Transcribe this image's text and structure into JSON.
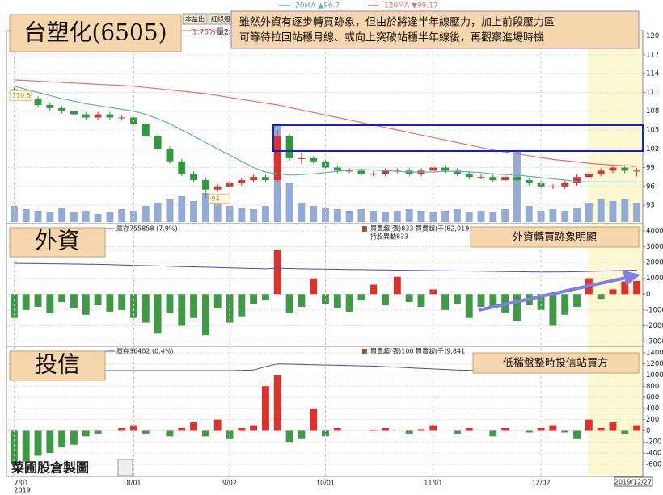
{
  "header": {
    "watermark": "菜圃股倉製圖",
    "info_tags": [
      "本益比",
      "紅綠燈"
    ],
    "change": "1.75%",
    "volume_note": "量2,"
  },
  "chart_data": [
    {
      "type": "candlestick",
      "title": "台塑化(6505)",
      "annotation": [
        "雖然外資有逐步轉買跡象，但由於將逢半年線壓力，加上前段壓力區",
        "可等待拉回站穩月線、或向上突破站穩半年線後，再觀察進場時機"
      ],
      "open": [
        111.5,
        111,
        110,
        109,
        108.5,
        108,
        107.5,
        107,
        107.5,
        107,
        107,
        106,
        104,
        102,
        100,
        98,
        97,
        95.5,
        96,
        96.5,
        97,
        97.5,
        97,
        104,
        100.5,
        100.5,
        100,
        99,
        98.5,
        98.5,
        98,
        98,
        98.5,
        98.5,
        98,
        98.5,
        99,
        98.5,
        98,
        97.5,
        97.5,
        97,
        97.5,
        97,
        96.5,
        96,
        96,
        96.5,
        97.5,
        98,
        98.5,
        99,
        98.5
      ],
      "high": [
        111.9,
        111.4,
        110.4,
        109.4,
        108.9,
        108.4,
        107.9,
        107.9,
        107.9,
        107.4,
        107.4,
        106.4,
        104.4,
        102.4,
        100.4,
        98.4,
        97.4,
        96.4,
        96.9,
        97.4,
        97.9,
        97.9,
        105,
        104.4,
        101.4,
        100.9,
        100.4,
        99.4,
        98.9,
        98.9,
        98.4,
        98.9,
        98.9,
        98.9,
        98.9,
        99.4,
        99.4,
        98.9,
        98.4,
        97.9,
        97.9,
        97.9,
        97.9,
        97.4,
        96.9,
        96.4,
        96.9,
        97.9,
        98.4,
        98.9,
        99.4,
        99.4,
        98.9
      ],
      "low": [
        110.6,
        109.6,
        108.6,
        108.1,
        107.6,
        107.1,
        106.6,
        106.6,
        106.6,
        106.6,
        105.6,
        103.6,
        101.6,
        99.6,
        97.6,
        96.6,
        94,
        95.1,
        95.6,
        96.1,
        96.6,
        96.6,
        96.6,
        100.1,
        99.6,
        99.6,
        98.6,
        98.1,
        98.1,
        97.6,
        97.6,
        97.6,
        98.1,
        97.6,
        97.6,
        98.1,
        98.1,
        97.6,
        97.1,
        97.1,
        96.6,
        96.6,
        96.6,
        96.1,
        95.6,
        95.6,
        95.6,
        96.1,
        97.1,
        97.6,
        98.1,
        98.1,
        97.6
      ],
      "close": [
        111,
        110,
        109,
        108.5,
        108,
        107.5,
        107,
        107.5,
        107,
        107,
        106,
        104,
        102,
        100,
        98,
        97,
        95.5,
        96,
        96.5,
        97,
        97.5,
        97,
        104,
        100.5,
        100.5,
        100,
        99,
        98.5,
        98.5,
        98,
        98,
        98.5,
        98.5,
        98,
        98.5,
        99,
        98.5,
        98,
        97.5,
        97.5,
        97,
        97.5,
        97,
        96.5,
        96,
        96,
        96.5,
        97.5,
        98,
        98.5,
        99,
        98.5,
        98.5
      ],
      "up_color": "#e0302c",
      "down_color": "#2e9a3c",
      "series": [
        {
          "name": "20MA ▲96.7",
          "color": "#5fb0b8",
          "values": [
            112,
            111.5,
            111,
            110.5,
            110,
            109.6,
            109.2,
            108.9,
            108.6,
            108.3,
            108,
            107.5,
            106.8,
            106,
            105,
            104,
            103,
            102,
            101,
            100,
            99,
            98.3,
            98,
            97.8,
            97.9,
            98,
            98.2,
            98.4,
            98.6,
            98.7,
            98.6,
            98.5,
            98.4,
            98.3,
            98.3,
            98.3,
            98.4,
            98.4,
            98.3,
            98.2,
            98,
            97.9,
            97.8,
            97.6,
            97.4,
            97.2,
            97,
            96.8,
            96.7,
            96.7,
            96.7,
            96.7,
            96.7
          ]
        },
        {
          "name": "120MA ▼99.17",
          "color": "#f07068",
          "values": [
            113,
            112.9,
            112.8,
            112.7,
            112.6,
            112.5,
            112.4,
            112.3,
            112.2,
            112.1,
            112,
            111.8,
            111.6,
            111.4,
            111.2,
            111,
            110.8,
            110.5,
            110.2,
            109.9,
            109.6,
            109.3,
            109,
            108.6,
            108.2,
            107.8,
            107.4,
            107,
            106.6,
            106.2,
            105.8,
            105.4,
            105,
            104.6,
            104.2,
            103.8,
            103.4,
            103,
            102.6,
            102.2,
            101.8,
            101.5,
            101.2,
            100.9,
            100.6,
            100.3,
            100.1,
            99.9,
            99.7,
            99.5,
            99.4,
            99.3,
            99.17
          ]
        }
      ],
      "volume": {
        "color": "#93abd8",
        "values": [
          5000,
          4000,
          3500,
          3000,
          4500,
          3000,
          3500,
          2500,
          3000,
          4000,
          3500,
          5000,
          6000,
          7000,
          8000,
          6500,
          9000,
          6000,
          5000,
          4500,
          4000,
          5000,
          30000,
          12000,
          6000,
          5000,
          4500,
          4000,
          3500,
          4000,
          3500,
          3000,
          3500,
          4000,
          3500,
          3000,
          3500,
          4000,
          3000,
          3500,
          3000,
          4000,
          22000,
          5000,
          3500,
          4000,
          3500,
          4500,
          6000,
          7000,
          6500,
          7000,
          6000
        ]
      },
      "price_labels": [
        110.5,
        94
      ],
      "ylim": [
        90.3,
        120.6
      ],
      "yticks": [
        93,
        96,
        99,
        102,
        105,
        108,
        111,
        114,
        117,
        120
      ],
      "grid": true
    },
    {
      "type": "bar",
      "title": "外資",
      "annotation": "外資轉買跡象明顯",
      "bar_name": "買賣超(張)833 買賣超(千)82,019",
      "note": "持股異動833",
      "values": [
        -1500,
        -1000,
        -800,
        -1200,
        -500,
        -900,
        -1300,
        -700,
        -1100,
        -1000,
        -1500,
        -1800,
        -2500,
        -1200,
        -2000,
        -1500,
        -2600,
        -900,
        -1800,
        -1400,
        -600,
        -400,
        2800,
        -1200,
        -800,
        1000,
        -600,
        -900,
        -1100,
        -400,
        600,
        -700,
        1100,
        -500,
        -800,
        300,
        -1000,
        -600,
        -1500,
        -800,
        -900,
        -1200,
        -1700,
        -700,
        -1000,
        -2000,
        -1300,
        -800,
        1000,
        -300,
        300,
        800,
        833
      ],
      "up_color": "#e0302c",
      "down_color": "#3f9a45",
      "series": [
        {
          "name": "庫存755858 (7.9%)",
          "color": "#4a48c0",
          "values": [
            1950,
            1940,
            1930,
            1920,
            1910,
            1900,
            1890,
            1880,
            1860,
            1840,
            1820,
            1800,
            1780,
            1760,
            1740,
            1720,
            1700,
            1680,
            1660,
            1640,
            1620,
            1600,
            1640,
            1620,
            1600,
            1590,
            1580,
            1570,
            1560,
            1550,
            1540,
            1530,
            1520,
            1510,
            1500,
            1490,
            1480,
            1470,
            1460,
            1450,
            1440,
            1430,
            1420,
            1410,
            1400,
            1400,
            1410,
            1420,
            1440,
            1460,
            1480,
            1500,
            1520
          ]
        }
      ],
      "ylim": [
        -3250,
        4400
      ],
      "yticks": [
        -3000,
        -2000,
        -1000,
        0,
        1000,
        2000,
        3000,
        4000
      ],
      "grid": true
    },
    {
      "type": "bar",
      "title": "投信",
      "annotation": "低檔盤整時投信站買方",
      "bar_name": "買賣超(張)100 買賣超(千)9,841",
      "values": [
        -600,
        -550,
        -450,
        -400,
        -300,
        -250,
        -100,
        -50,
        0,
        50,
        100,
        -50,
        0,
        -100,
        50,
        150,
        -100,
        200,
        -150,
        50,
        100,
        800,
        1000,
        -200,
        -150,
        400,
        -100,
        50,
        0,
        0,
        20,
        50,
        0,
        -50,
        30,
        100,
        0,
        -50,
        50,
        0,
        -100,
        50,
        0,
        -30,
        50,
        100,
        -30,
        -150,
        200,
        50,
        150,
        -60,
        100
      ],
      "up_color": "#e0302c",
      "down_color": "#3f9a45",
      "series": [
        {
          "name": "庫存36402 (0.4%)",
          "color": "#4a48c0",
          "values": [
            1080,
            1080,
            1080,
            1080,
            1080,
            1080,
            1080,
            1080,
            1080,
            1080,
            1080,
            1080,
            1080,
            1080,
            1080,
            1080,
            1080,
            1080,
            1080,
            1085,
            1090,
            1150,
            1200,
            1195,
            1190,
            1185,
            1180,
            1175,
            1170,
            1165,
            1160,
            1150,
            1140,
            1130,
            1120,
            1110,
            1100,
            1090,
            1085,
            1080,
            1080,
            1080,
            1080,
            1080,
            1080,
            1080,
            1080,
            1080,
            1080,
            1080,
            1080,
            1080,
            1080
          ]
        }
      ],
      "categories": [
        "7/01",
        null,
        null,
        null,
        null,
        null,
        null,
        null,
        null,
        null,
        "8/01",
        null,
        null,
        null,
        null,
        null,
        null,
        null,
        "9/02",
        null,
        null,
        null,
        null,
        null,
        null,
        null,
        "10/01",
        null,
        null,
        null,
        null,
        null,
        null,
        null,
        null,
        "11/01",
        null,
        null,
        null,
        null,
        null,
        null,
        null,
        null,
        "12/02",
        null,
        null,
        null,
        null,
        null,
        null,
        null,
        "2019/12/27"
      ],
      "year": "2019",
      "ylim": [
        -820,
        1500
      ],
      "yticks": [
        -600,
        -400,
        -200,
        0,
        200,
        400,
        600,
        800,
        1000,
        1200,
        1400
      ],
      "grid": true
    }
  ]
}
